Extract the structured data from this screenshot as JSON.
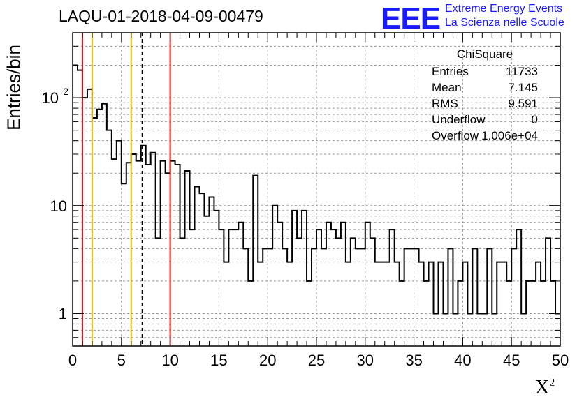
{
  "chart_data": {
    "type": "histogram",
    "title": "LAQU-01-2018-04-09-00479",
    "xlabel": "X",
    "xlabel_sup": "2",
    "ylabel": "Entries/bin",
    "x_range": [
      0,
      50
    ],
    "y_range": [
      0.5,
      400
    ],
    "y_scale": "log",
    "grid": true,
    "bin_width": 0.5,
    "x_ticks": [
      "0",
      "5",
      "10",
      "15",
      "20",
      "25",
      "30",
      "35",
      "40",
      "45",
      "50"
    ],
    "y_ticks": [
      {
        "value": 1,
        "label": "1"
      },
      {
        "value": 10,
        "label": "10"
      },
      {
        "value": 100,
        "label": "10",
        "sup": "2"
      }
    ],
    "bin_counts": [
      200,
      180,
      100,
      120,
      65,
      78,
      88,
      50,
      27,
      40,
      16,
      25,
      30,
      26,
      36,
      24,
      31,
      5,
      26,
      20,
      26,
      24,
      5,
      21,
      6,
      15,
      13,
      8,
      12,
      9,
      6,
      3,
      6,
      6,
      7,
      4,
      2,
      19,
      3,
      4,
      4,
      10,
      7,
      4,
      3,
      9,
      5,
      9,
      2,
      4,
      6,
      4,
      7,
      6,
      5,
      7,
      3,
      5,
      4,
      4,
      7,
      5,
      3,
      3,
      3,
      6,
      3,
      2,
      4,
      4,
      4,
      3,
      2,
      3,
      1,
      3,
      1,
      4,
      1,
      2,
      3,
      1,
      4,
      1,
      1,
      4,
      1,
      3,
      3,
      2,
      4,
      6,
      1,
      2,
      2,
      3,
      2,
      5,
      2,
      1
    ],
    "vertical_lines": [
      {
        "x": 1,
        "color": "#dd1111",
        "style": "solid"
      },
      {
        "x": 2,
        "color": "#eebb00",
        "style": "solid"
      },
      {
        "x": 6,
        "color": "#eebb00",
        "style": "solid"
      },
      {
        "x": 7.145,
        "color": "#000000",
        "style": "dashed"
      },
      {
        "x": 10,
        "color": "#dd1111",
        "style": "solid"
      }
    ],
    "stats": {
      "title": "ChiSquare",
      "rows": [
        {
          "key": "Entries",
          "value": "11733"
        },
        {
          "key": "Mean",
          "value": "7.145"
        },
        {
          "key": "RMS",
          "value": "9.591"
        },
        {
          "key": "Underflow",
          "value": "0"
        },
        {
          "key": "Overflow",
          "value": "1.006e+04"
        }
      ]
    }
  },
  "logo": {
    "mark": "EEE",
    "line1": "Extreme Energy Events",
    "line2": "La Scienza nelle Scuole",
    "color": "#1a1aff"
  }
}
